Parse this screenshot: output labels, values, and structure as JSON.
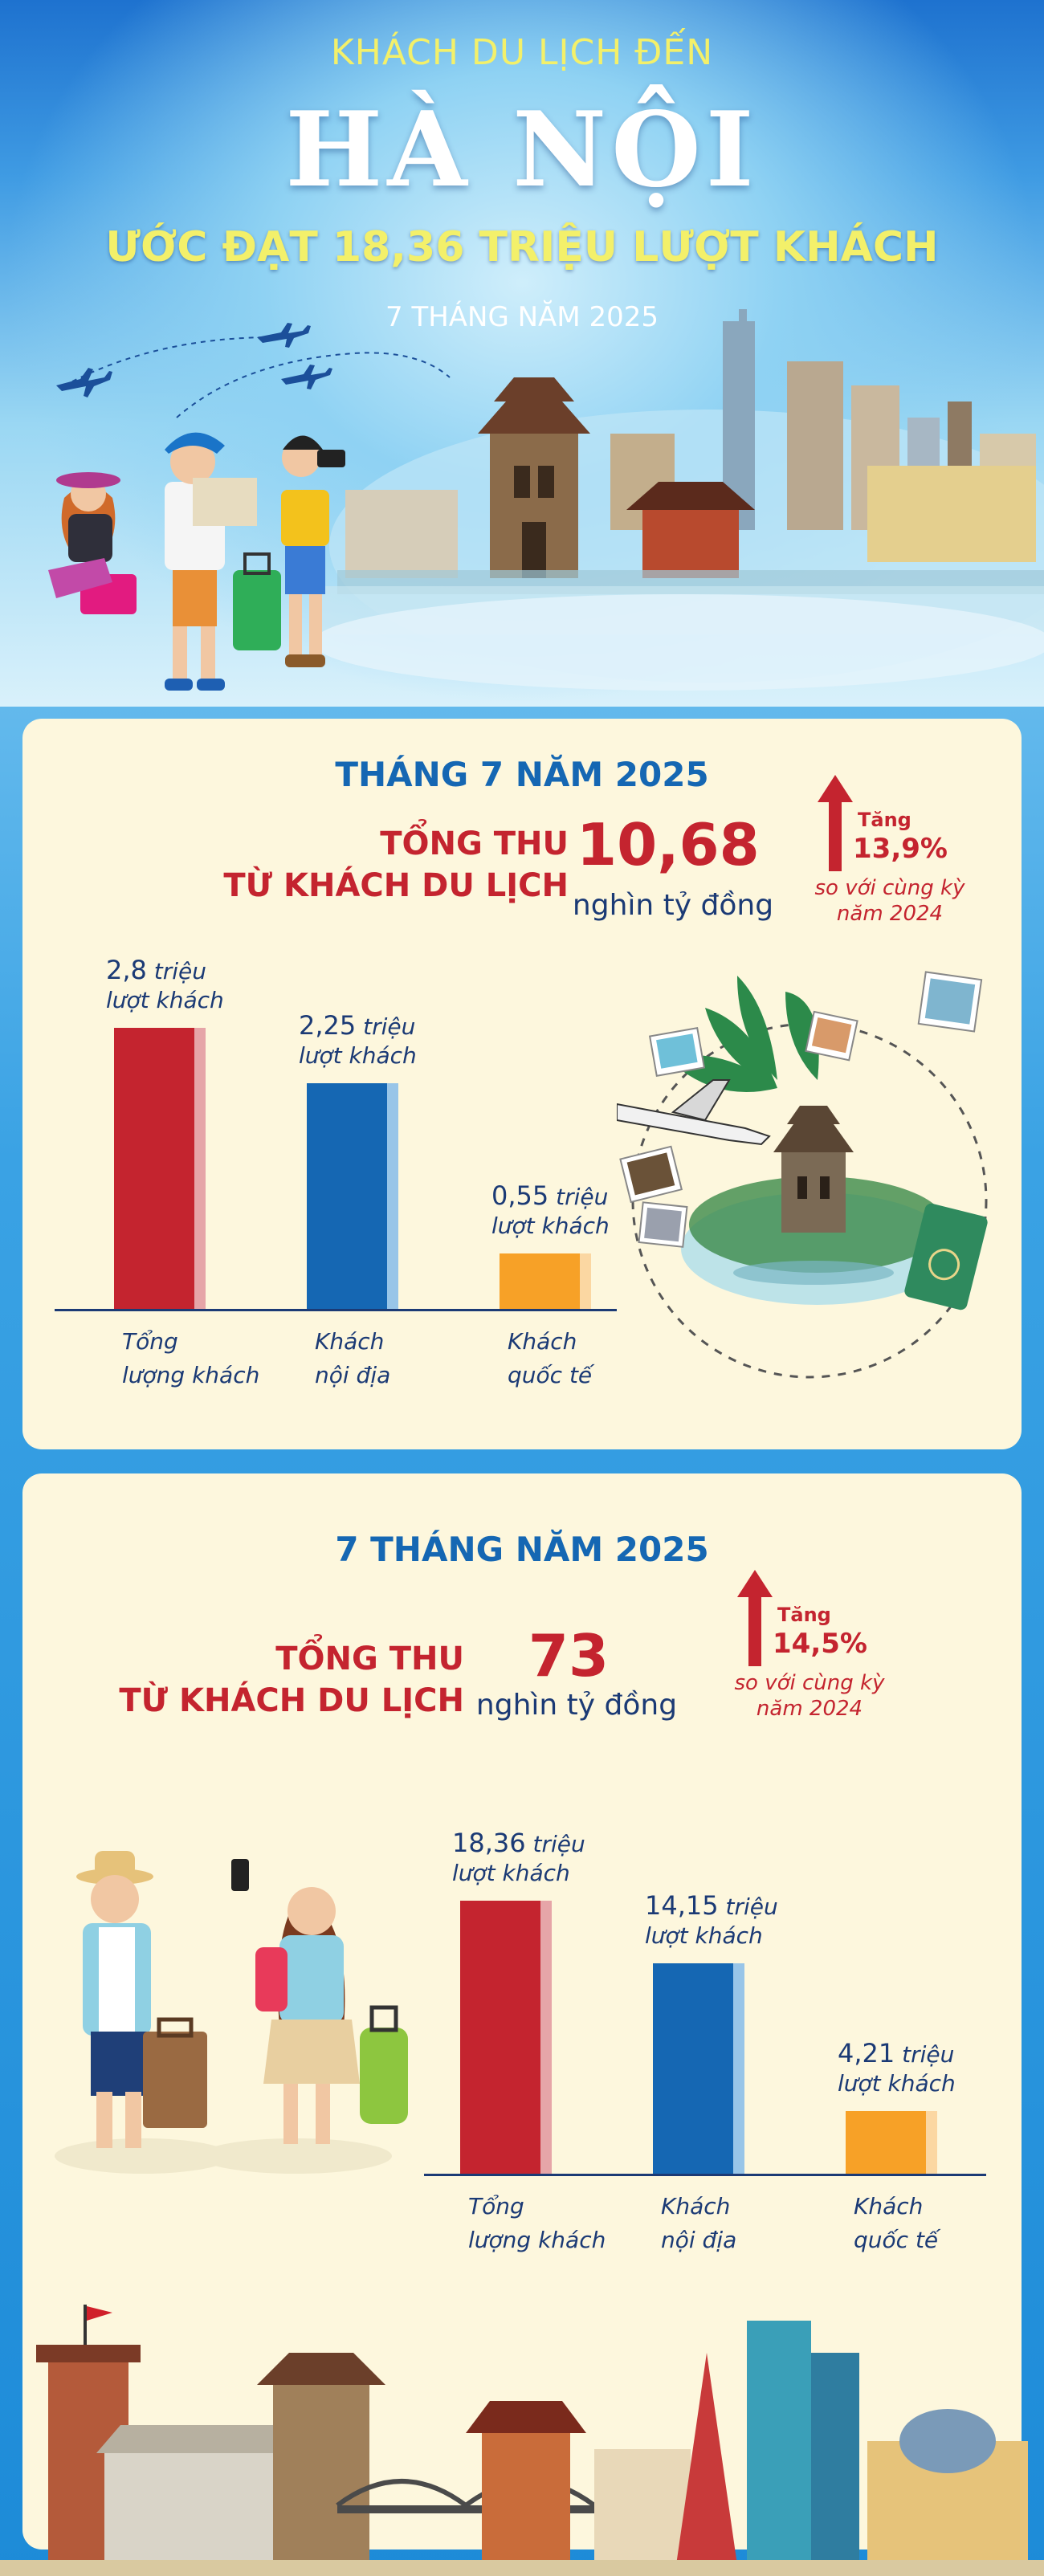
{
  "hero": {
    "kicker": "KHÁCH DU LỊCH ĐẾN",
    "title": "HÀ NỘI",
    "subtitle": "ƯỚC ĐẠT 18,36 TRIỆU LƯỢT KHÁCH",
    "period": "7 THÁNG NĂM 2025"
  },
  "month": {
    "title": "THÁNG 7 NĂM 2025",
    "revenue_label_1": "TỔNG THU",
    "revenue_label_2": "TỪ KHÁCH DU LỊCH",
    "revenue_value": "10,68",
    "revenue_unit": "nghìn tỷ đồng",
    "growth_word": "Tăng",
    "growth_value": "13,9%",
    "growth_cmp_1": "so với cùng kỳ",
    "growth_cmp_2": "năm 2024"
  },
  "ytd": {
    "title": "7 THÁNG NĂM 2025",
    "revenue_label_1": "TỔNG THU",
    "revenue_label_2": "TỪ KHÁCH DU LỊCH",
    "revenue_value": "73",
    "revenue_unit": "nghìn tỷ đồng",
    "growth_word": "Tăng",
    "growth_value": "14,5%",
    "growth_cmp_1": "so với cùng kỳ",
    "growth_cmp_2": "năm 2024"
  },
  "chart_data": [
    {
      "type": "bar",
      "title": "THÁNG 7 NĂM 2025",
      "categories": [
        "Tổng lượng khách",
        "Khách nội địa",
        "Khách quốc tế"
      ],
      "category_lines": [
        [
          "Tổng",
          "lượng khách"
        ],
        [
          "Khách",
          "nội địa"
        ],
        [
          "Khách",
          "quốc tế"
        ]
      ],
      "values": [
        2.8,
        2.25,
        0.55
      ],
      "value_labels": [
        "2,8",
        "2,25",
        "0,55"
      ],
      "unit_word": "triệu",
      "unit_line": "lượt khách",
      "ylim": [
        0,
        2.8
      ],
      "colors": [
        "#c4242f",
        "#1567b3",
        "#f7a127"
      ]
    },
    {
      "type": "bar",
      "title": "7 THÁNG NĂM 2025",
      "categories": [
        "Tổng lượng khách",
        "Khách nội địa",
        "Khách quốc tế"
      ],
      "category_lines": [
        [
          "Tổng",
          "lượng khách"
        ],
        [
          "Khách",
          "nội địa"
        ],
        [
          "Khách",
          "quốc tế"
        ]
      ],
      "values": [
        18.36,
        14.15,
        4.21
      ],
      "value_labels": [
        "18,36",
        "14,15",
        "4,21"
      ],
      "unit_word": "triệu",
      "unit_line": "lượt khách",
      "ylim": [
        0,
        18.36
      ],
      "colors": [
        "#c4242f",
        "#1567b3",
        "#f7a127"
      ]
    }
  ],
  "colors": {
    "accent_red": "#c4242f",
    "accent_blue": "#1567b3",
    "accent_orange": "#f7a127",
    "card_bg": "#fdf7dd",
    "kicker_yellow": "#f3f06a"
  },
  "icons": [
    "airplane-icon",
    "passport-icon",
    "photo-icon",
    "up-arrow-icon",
    "palm-leaf-icon",
    "pagoda-icon",
    "tourist-figure-icon"
  ]
}
